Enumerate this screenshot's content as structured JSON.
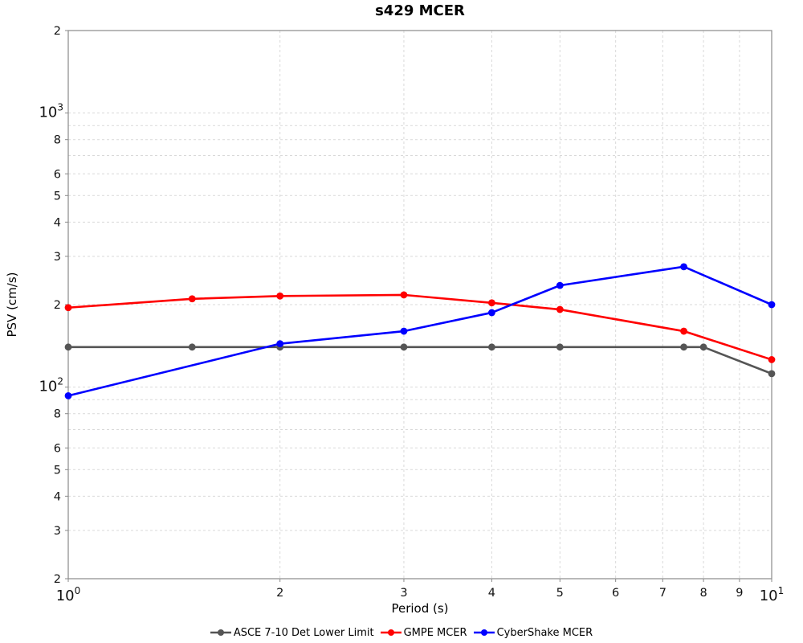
{
  "title": "s429 MCER",
  "colors": {
    "background": "#ffffff",
    "frame": "#8a8a8a",
    "grid": "#d9d9d9",
    "tick": "#8a8a8a",
    "text": "#111111",
    "asce": "#555555",
    "gmpe": "#ff0000",
    "cybershake": "#0000ff"
  },
  "chart_data": {
    "type": "line",
    "title": "s429 MCER",
    "xlabel": "Period (s)",
    "ylabel": "PSV (cm/s)",
    "x_scale": "log",
    "y_scale": "log",
    "xlim": [
      1,
      10
    ],
    "ylim": [
      20,
      2000
    ],
    "grid": "dashed gray minor log grid, both axes",
    "legend_position": "bottom-center",
    "series": [
      {
        "name": "ASCE 7-10 Det Lower Limit",
        "color": "#555555",
        "x": [
          1,
          1.5,
          2,
          3,
          4,
          5,
          7.5,
          8,
          10
        ],
        "y": [
          140,
          140,
          140,
          140,
          140,
          140,
          140,
          140,
          112
        ]
      },
      {
        "name": "GMPE MCER",
        "color": "#ff0000",
        "x": [
          1,
          1.5,
          2,
          3,
          4,
          5,
          7.5,
          10
        ],
        "y": [
          195,
          210,
          215,
          217,
          203,
          192,
          160,
          126
        ]
      },
      {
        "name": "CyberShake MCER",
        "color": "#0000ff",
        "x": [
          1,
          2,
          3,
          4,
          5,
          7.5,
          10
        ],
        "y": [
          93,
          144,
          160,
          187,
          235,
          275,
          200
        ]
      }
    ],
    "x_ticks": [
      {
        "v": 1,
        "label": "10^0",
        "major": true
      },
      {
        "v": 2,
        "label": "2"
      },
      {
        "v": 3,
        "label": "3"
      },
      {
        "v": 4,
        "label": "4"
      },
      {
        "v": 5,
        "label": "5"
      },
      {
        "v": 6,
        "label": "6"
      },
      {
        "v": 7,
        "label": "7"
      },
      {
        "v": 8,
        "label": "8"
      },
      {
        "v": 9,
        "label": "9"
      },
      {
        "v": 10,
        "label": "10^1",
        "major": true
      }
    ],
    "y_ticks": [
      {
        "v": 2000,
        "label": "2"
      },
      {
        "v": 1000,
        "label": "10^3",
        "major": true
      },
      {
        "v": 800,
        "label": "8"
      },
      {
        "v": 600,
        "label": "6"
      },
      {
        "v": 500,
        "label": "5"
      },
      {
        "v": 400,
        "label": "4"
      },
      {
        "v": 300,
        "label": "3"
      },
      {
        "v": 200,
        "label": "2"
      },
      {
        "v": 100,
        "label": "10^2",
        "major": true
      },
      {
        "v": 80,
        "label": "8"
      },
      {
        "v": 60,
        "label": "6"
      },
      {
        "v": 50,
        "label": "5"
      },
      {
        "v": 40,
        "label": "4"
      },
      {
        "v": 30,
        "label": "3"
      },
      {
        "v": 20,
        "label": "2"
      }
    ],
    "x_gridlines": [
      2,
      3,
      4,
      5,
      6,
      7,
      8,
      9
    ],
    "y_gridlines": [
      1000,
      900,
      800,
      700,
      600,
      500,
      400,
      300,
      200,
      100,
      90,
      80,
      70,
      60,
      50,
      40,
      30
    ]
  }
}
